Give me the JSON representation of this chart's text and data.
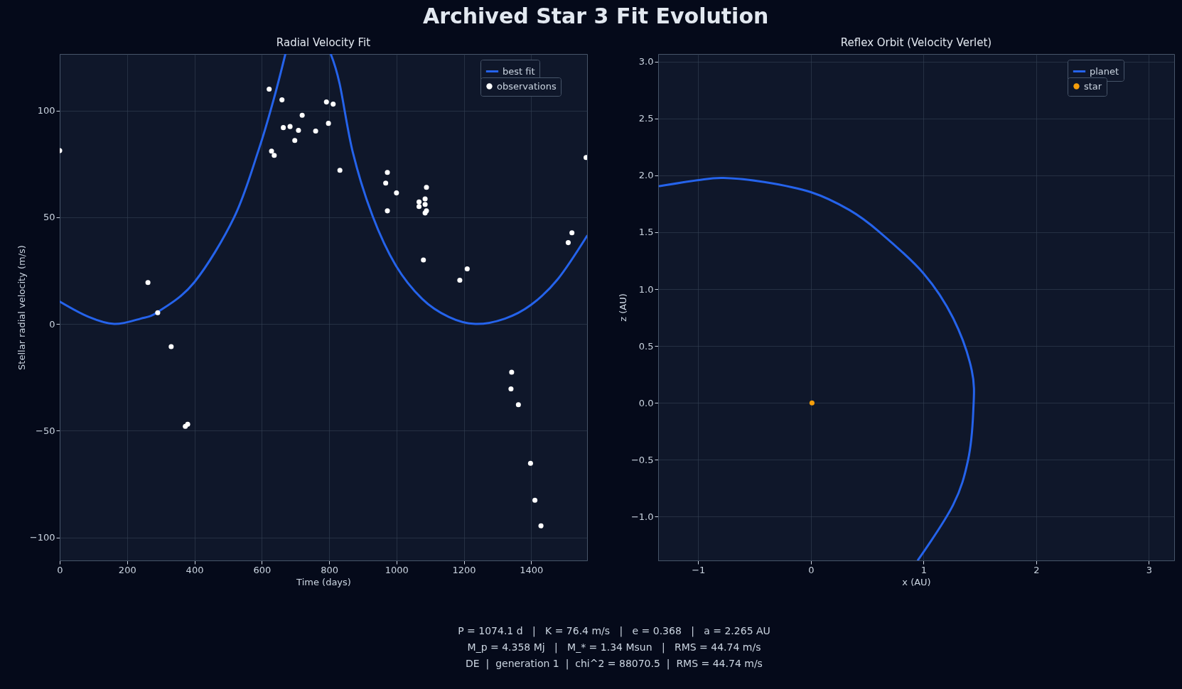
{
  "chart_data": [
    {
      "type": "line",
      "title": "Radial Velocity Fit",
      "xlabel": "Time (days)",
      "ylabel": "Stellar radial velocity (m/s)",
      "xlim": [
        0,
        1566
      ],
      "ylim": [
        -110.8,
        126.5
      ],
      "xticks": [
        0,
        200,
        400,
        600,
        800,
        1000,
        1200,
        1400
      ],
      "yticks": [
        {
          "value": -100,
          "label": "−100"
        },
        {
          "value": -50,
          "label": "−50"
        },
        0,
        50,
        100
      ],
      "grid": true,
      "legend": "top right",
      "series": [
        {
          "name": "best fit",
          "type": "line",
          "color": "#2563eb",
          "x": [
            0,
            86,
            162,
            240,
            292,
            400,
            518,
            591,
            635,
            670,
            738,
            805,
            831,
            871,
            929,
            998,
            1076,
            1155,
            1234,
            1322,
            1400,
            1479,
            1566
          ],
          "values": [
            10.5,
            3.3,
            0,
            2.5,
            5.7,
            19.6,
            50,
            81.7,
            105,
            126.4,
            null,
            126.4,
            112.7,
            80,
            50.6,
            27.4,
            11.8,
            3.3,
            0,
            2.5,
            9,
            21,
            41.3
          ]
        },
        {
          "name": "observations",
          "type": "scatter",
          "marker": "circle",
          "color": "#ffffff",
          "x": [
            0,
            262,
            291,
            331,
            373,
            380,
            622,
            629,
            637,
            660,
            664,
            684,
            698,
            709,
            720,
            760,
            792,
            798,
            812,
            832,
            968,
            973,
            973,
            1000,
            1067,
            1067,
            1080,
            1085,
            1085,
            1089,
            1085,
            1089,
            1188,
            1210,
            1342,
            1340,
            1362,
            1398,
            1411,
            1429,
            1510,
            1521,
            1563
          ],
          "values": [
            81.2,
            19.4,
            5.3,
            -10.6,
            -48,
            -47,
            110,
            81,
            79,
            105,
            92,
            92.5,
            86,
            90.7,
            97.8,
            90.4,
            104,
            94,
            103,
            72,
            66,
            71,
            53,
            61.4,
            57.2,
            55,
            30,
            56,
            58.6,
            64,
            52,
            53,
            20.5,
            25.8,
            -22.6,
            -30.4,
            -37.8,
            -65.3,
            -82.6,
            -94.6,
            38.1,
            42.7,
            78
          ]
        }
      ]
    },
    {
      "type": "line",
      "title": "Reflex Orbit (Velocity Verlet)",
      "xlabel": "x (AU)",
      "ylabel": "z (AU)",
      "xlim": [
        -1.355,
        3.224
      ],
      "ylim": [
        -1.384,
        3.066
      ],
      "xticks": [
        {
          "value": -1,
          "label": "−1"
        },
        0,
        1,
        2,
        3
      ],
      "yticks": [
        {
          "value": -1,
          "label": "−1.0"
        },
        {
          "value": -0.5,
          "label": "−0.5"
        },
        {
          "value": 0,
          "label": "0.0"
        },
        0.5,
        {
          "value": 1,
          "label": "1.0"
        },
        1.5,
        {
          "value": 2,
          "label": "2.0"
        },
        2.5,
        {
          "value": 3,
          "label": "3.0"
        }
      ],
      "grid": true,
      "legend": "top right",
      "series": [
        {
          "name": "planet",
          "type": "line",
          "color": "#2563eb",
          "x": [
            -1.342,
            -1.007,
            -0.776,
            -0.414,
            0,
            0.342,
            0.605,
            1,
            1.263,
            1.428,
            1.441,
            1.395,
            1.263,
            0.951
          ],
          "values": [
            1.905,
            1.957,
            1.977,
            1.941,
            1.852,
            1.695,
            1.505,
            1.138,
            0.744,
            0.285,
            -0.075,
            -0.502,
            -0.895,
            -1.38
          ]
        },
        {
          "name": "star",
          "type": "scatter",
          "marker": "circle",
          "color": "#f59e0b",
          "x": [
            0.01
          ],
          "values": [
            0
          ]
        }
      ]
    },
    {
      "type": "other",
      "title": "Archived Star 3 Fit Evolution",
      "annotations": [
        "P = 1074.1 d   |   K = 76.4 m/s   |   e = 0.368   |   a = 2.265 AU",
        "M_p = 4.358 Mj   |   M_* = 1.34 Msun   |   RMS = 44.74 m/s",
        "DE  |  generation 1  |  chi^2 = 88070.5  |  RMS = 44.74 m/s"
      ]
    }
  ]
}
